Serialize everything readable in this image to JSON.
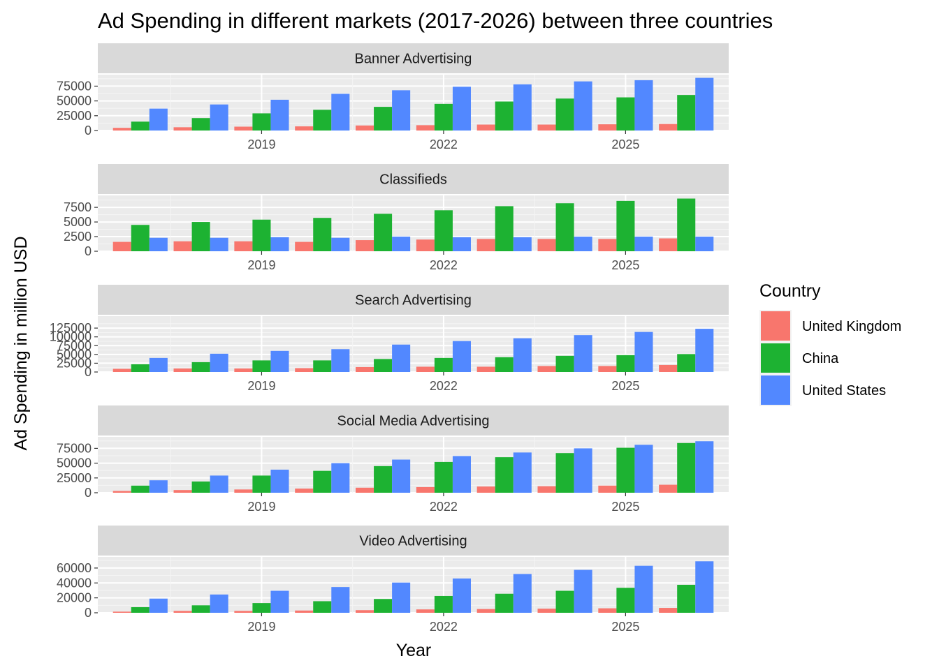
{
  "chart_data": {
    "type": "bar",
    "title": "Ad Spending in different markets (2017-2026) between three countries",
    "xlabel": "Year",
    "ylabel": "Ad Spending in million USD",
    "legend": {
      "title": "Country",
      "position": "right"
    },
    "series_names": [
      "United Kingdom",
      "China",
      "United States"
    ],
    "colors": {
      "United Kingdom": "#F8766D",
      "China": "#1DB232",
      "United States": "#5288FF"
    },
    "x": [
      2017,
      2018,
      2019,
      2020,
      2021,
      2022,
      2023,
      2024,
      2025,
      2026
    ],
    "x_ticks": [
      "2019",
      "2022",
      "2025"
    ],
    "grid": true,
    "facets": [
      {
        "name": "Banner Advertising",
        "ylim": [
          0,
          92000
        ],
        "y_ticks": [
          "0",
          "25000",
          "50000",
          "75000"
        ],
        "series": [
          {
            "name": "United Kingdom",
            "values": [
              4500,
              5500,
              6500,
              7000,
              8500,
              9000,
              10000,
              10000,
              10500,
              11000
            ]
          },
          {
            "name": "China",
            "values": [
              15000,
              21000,
              29000,
              35000,
              40000,
              45000,
              49000,
              54000,
              56000,
              60000
            ]
          },
          {
            "name": "United States",
            "values": [
              37000,
              44000,
              52000,
              62000,
              68000,
              74000,
              78000,
              83000,
              85000,
              89000
            ]
          }
        ]
      },
      {
        "name": "Classifieds",
        "ylim": [
          0,
          9300
        ],
        "y_ticks": [
          "0",
          "2500",
          "5000",
          "7500"
        ],
        "series": [
          {
            "name": "United Kingdom",
            "values": [
              1600,
              1700,
              1700,
              1600,
              1900,
              2000,
              2100,
              2100,
              2100,
              2200
            ]
          },
          {
            "name": "China",
            "values": [
              4500,
              5000,
              5400,
              5700,
              6400,
              7000,
              7700,
              8200,
              8600,
              9000
            ]
          },
          {
            "name": "United States",
            "values": [
              2300,
              2300,
              2400,
              2300,
              2500,
              2400,
              2400,
              2500,
              2500,
              2500
            ]
          }
        ]
      },
      {
        "name": "Search Advertising",
        "ylim": [
          0,
          155000
        ],
        "y_ticks": [
          "0",
          "25000",
          "50000",
          "75000",
          "100000",
          "125000"
        ],
        "series": [
          {
            "name": "United Kingdom",
            "values": [
              9000,
              10000,
              10000,
              11000,
              14000,
              15000,
              15000,
              17000,
              17000,
              20000
            ]
          },
          {
            "name": "China",
            "values": [
              22000,
              28000,
              33000,
              33000,
              37000,
              40000,
              42000,
              46000,
              48000,
              51000
            ]
          },
          {
            "name": "United States",
            "values": [
              40000,
              52000,
              60000,
              65000,
              78000,
              88000,
              96000,
              105000,
              114000,
              123000
            ]
          }
        ]
      },
      {
        "name": "Social Media Advertising",
        "ylim": [
          0,
          92000
        ],
        "y_ticks": [
          "0",
          "25000",
          "50000",
          "75000"
        ],
        "series": [
          {
            "name": "United Kingdom",
            "values": [
              3000,
              4500,
              5500,
              7000,
              8500,
              9500,
              10500,
              11000,
              12000,
              13500
            ]
          },
          {
            "name": "China",
            "values": [
              12000,
              19000,
              29000,
              37000,
              45000,
              52000,
              60000,
              67000,
              76000,
              84000
            ]
          },
          {
            "name": "United States",
            "values": [
              21000,
              29000,
              39000,
              50000,
              56000,
              62000,
              68000,
              75000,
              81000,
              87000
            ]
          }
        ]
      },
      {
        "name": "Video Advertising",
        "ylim": [
          0,
          73000
        ],
        "y_ticks": [
          "0",
          "20000",
          "40000",
          "60000"
        ],
        "series": [
          {
            "name": "United Kingdom",
            "values": [
              1500,
              2500,
              2500,
              3000,
              3500,
              4500,
              5000,
              5500,
              6000,
              6500
            ]
          },
          {
            "name": "China",
            "values": [
              7500,
              10000,
              13000,
              15500,
              18500,
              22500,
              25500,
              29500,
              33500,
              37500
            ]
          },
          {
            "name": "United States",
            "values": [
              19000,
              24500,
              29500,
              34500,
              40500,
              46000,
              52000,
              57500,
              63000,
              69000
            ]
          }
        ]
      }
    ]
  }
}
